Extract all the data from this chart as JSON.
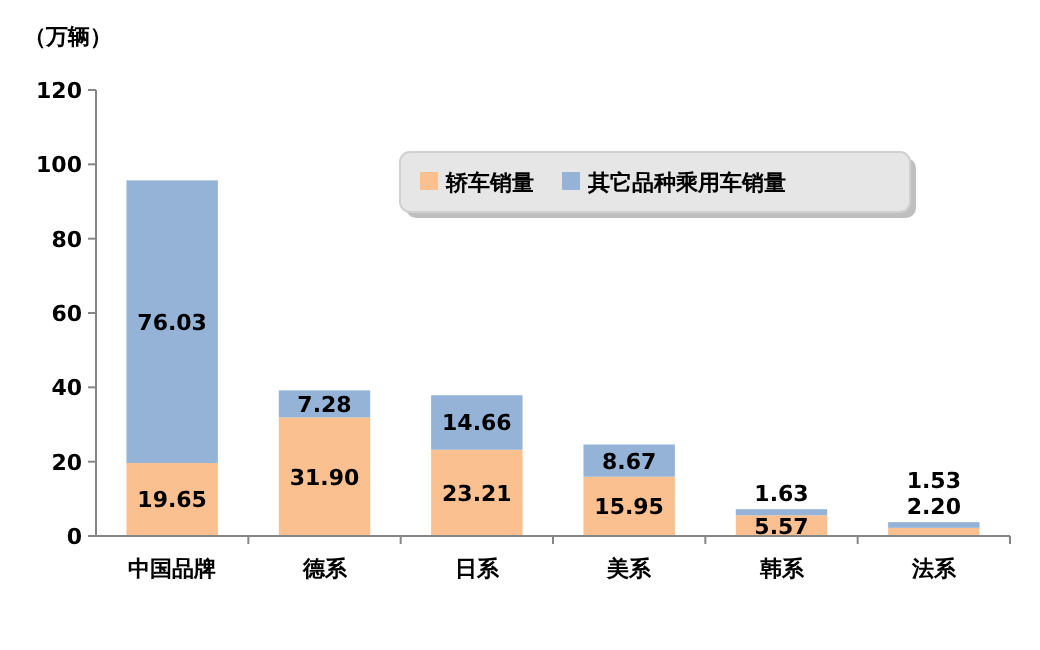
{
  "chart_data": {
    "type": "bar",
    "stacked": true,
    "ylabel": "（万辆）",
    "categories": [
      "中国品牌",
      "德系",
      "日系",
      "美系",
      "韩系",
      "法系"
    ],
    "series": [
      {
        "name": "轿车销量",
        "color": "#fac090",
        "values": [
          19.65,
          31.9,
          23.21,
          15.95,
          5.57,
          2.2
        ],
        "value_labels": [
          "19.65",
          "31.90",
          "23.21",
          "15.95",
          "5.57",
          "2.20"
        ]
      },
      {
        "name": "其它品种乘用车销量",
        "color": "#95b3d7",
        "values": [
          76.03,
          7.28,
          14.66,
          8.67,
          1.63,
          1.53
        ],
        "value_labels": [
          "76.03",
          "7.28",
          "14.66",
          "8.67",
          "1.63",
          "1.53"
        ]
      }
    ],
    "ylim": [
      0,
      120
    ],
    "yticks": [
      0,
      20,
      40,
      60,
      80,
      100,
      120
    ],
    "legend": "top right",
    "grid": false
  }
}
